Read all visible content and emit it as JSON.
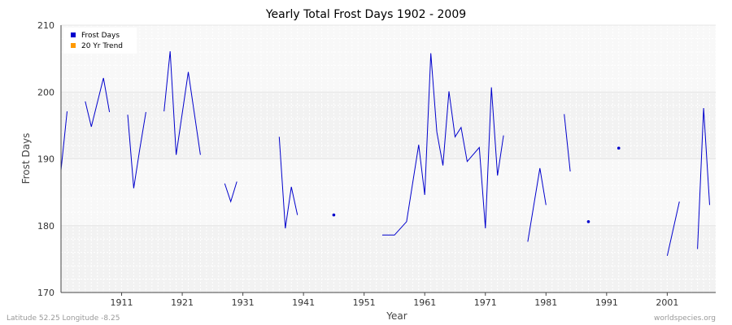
{
  "chart_data": {
    "type": "line",
    "title": "Yearly Total Frost Days 1902 - 2009",
    "xlabel": "Year",
    "ylabel": "Frost Days",
    "xlim": [
      1901,
      2009
    ],
    "ylim": [
      170,
      210
    ],
    "xticks": [
      1911,
      1921,
      1931,
      1941,
      1951,
      1961,
      1971,
      1981,
      1991,
      2001
    ],
    "yticks": [
      170,
      180,
      190,
      200,
      210
    ],
    "legend": {
      "placement": "top-left",
      "entries": [
        {
          "label": "Frost Days",
          "color": "#0000cc"
        },
        {
          "label": "20 Yr Trend",
          "color": "#ff9900"
        }
      ]
    },
    "series": [
      {
        "name": "Frost Days",
        "color": "#0000cc",
        "points": [
          [
            1901,
            188.3
          ],
          [
            1902,
            197.1
          ],
          [
            1905,
            198.6
          ],
          [
            1906,
            194.8
          ],
          [
            1908,
            202.1
          ],
          [
            1909,
            197.0
          ],
          [
            1912,
            196.6
          ],
          [
            1913,
            185.6
          ],
          [
            1914,
            191.5
          ],
          [
            1915,
            197.0
          ],
          [
            1918,
            197.1
          ],
          [
            1919,
            206.1
          ],
          [
            1920,
            190.6
          ],
          [
            1922,
            203.0
          ],
          [
            1924,
            190.6
          ],
          [
            1928,
            186.3
          ],
          [
            1929,
            183.6
          ],
          [
            1930,
            186.6
          ],
          [
            1937,
            193.3
          ],
          [
            1938,
            179.6
          ],
          [
            1939,
            185.8
          ],
          [
            1940,
            181.6
          ],
          [
            1946,
            181.6
          ],
          [
            1954,
            178.6
          ],
          [
            1956,
            178.6
          ],
          [
            1958,
            180.6
          ],
          [
            1960,
            192.1
          ],
          [
            1961,
            184.6
          ],
          [
            1962,
            205.8
          ],
          [
            1963,
            194.0
          ],
          [
            1964,
            189.0
          ],
          [
            1965,
            200.1
          ],
          [
            1966,
            193.3
          ],
          [
            1967,
            194.7
          ],
          [
            1968,
            189.6
          ],
          [
            1970,
            191.7
          ],
          [
            1971,
            179.6
          ],
          [
            1972,
            200.7
          ],
          [
            1973,
            187.5
          ],
          [
            1974,
            193.5
          ],
          [
            1978,
            177.6
          ],
          [
            1980,
            188.6
          ],
          [
            1981,
            183.1
          ],
          [
            1984,
            196.7
          ],
          [
            1985,
            188.1
          ],
          [
            1988,
            180.6
          ],
          [
            1993,
            191.6
          ],
          [
            2001,
            175.5
          ],
          [
            2003,
            183.6
          ],
          [
            2006,
            176.5
          ],
          [
            2007,
            197.6
          ],
          [
            2008,
            183.1
          ]
        ]
      },
      {
        "name": "20 Yr Trend",
        "color": "#ff9900",
        "points": []
      }
    ]
  },
  "footer": {
    "location": "Latitude 52.25 Longitude -8.25",
    "source": "worldspecies.org"
  }
}
